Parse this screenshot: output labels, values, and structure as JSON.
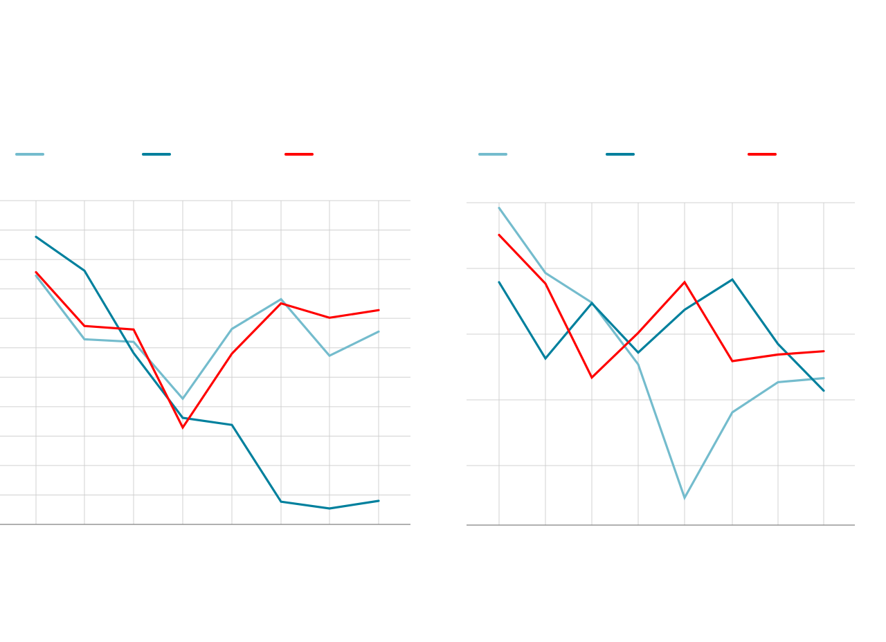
{
  "chart_data": [
    {
      "type": "line",
      "x": [
        1,
        2,
        3,
        4,
        5,
        6,
        7,
        8
      ],
      "ylim": [
        0,
        11
      ],
      "grid": true,
      "legend": "top",
      "series": [
        {
          "color": "#74bccd",
          "values": [
            8.45,
            6.29,
            6.2,
            4.27,
            6.64,
            7.65,
            5.73,
            6.55
          ]
        },
        {
          "color": "#00809d",
          "values": [
            9.77,
            8.62,
            5.82,
            3.62,
            3.38,
            0.77,
            0.54,
            0.8
          ]
        },
        {
          "color": "#ff0000",
          "values": [
            8.57,
            6.74,
            6.62,
            3.29,
            5.8,
            7.51,
            7.02,
            7.28
          ]
        }
      ]
    },
    {
      "type": "line",
      "x": [
        1,
        2,
        3,
        4,
        5,
        6,
        7,
        8
      ],
      "ylim": [
        0.1,
        5
      ],
      "grid": true,
      "legend": "top",
      "series": [
        {
          "color": "#74bccd",
          "values": [
            4.92,
            3.93,
            3.48,
            2.54,
            0.51,
            1.81,
            2.27,
            2.33
          ]
        },
        {
          "color": "#00809d",
          "values": [
            3.79,
            2.63,
            3.47,
            2.72,
            3.37,
            3.83,
            2.85,
            2.14
          ]
        },
        {
          "color": "#ff0000",
          "values": [
            4.51,
            3.77,
            2.34,
            3.02,
            3.79,
            2.59,
            2.69,
            2.74
          ]
        }
      ]
    }
  ]
}
